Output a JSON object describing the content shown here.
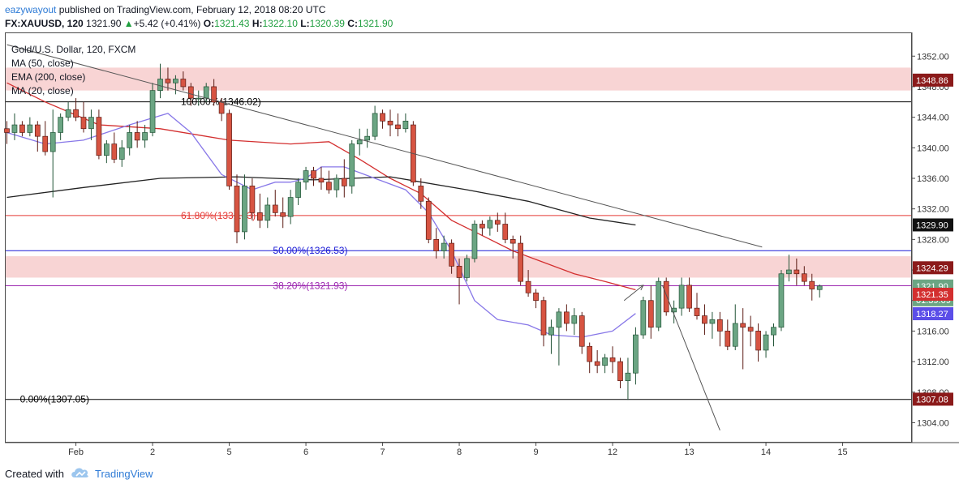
{
  "header": {
    "author": "eazywayout",
    "published_text": "published on TradingView.com, February 12, 2018 08:20 UTC",
    "symbol_interval": "FX:XAUUSD, 120",
    "last_price": "1321.90",
    "change_text": "+5.42 (+0.41%)",
    "open_label": "O:",
    "open_value": "1321.43",
    "high_label": "H:",
    "high_value": "1322.10",
    "low_label": "L:",
    "low_value": "1320.39",
    "close_label": "C:",
    "close_value": "1321.90"
  },
  "legend": {
    "title": "Gold/U.S. Dollar, 120, FXCM",
    "ma50": "MA (50, close)",
    "ema200": "EMA (200, close)",
    "ma20": "MA (20, close)"
  },
  "footer": {
    "created_with": "Created with",
    "brand": "TradingView"
  },
  "colors": {
    "up": "#6ba583",
    "down": "#d75442",
    "ma50": "#d32f2f",
    "ema200": "#222222",
    "ma20": "#8878e8",
    "fib_top": "#000000",
    "fib_618": "#e53935",
    "fib_50": "#1a1ad6",
    "fib_382": "#9c27b0",
    "zone": "#f5c6c6"
  },
  "chart_data": {
    "type": "candlestick",
    "y_axis": {
      "min": 1301.5,
      "max": 1355,
      "ticks": [
        1304,
        1308,
        1312,
        1316,
        1320,
        1324,
        1328,
        1332,
        1336,
        1340,
        1344,
        1348,
        1352
      ]
    },
    "x_axis": {
      "ticks": [
        {
          "label": "Feb",
          "pos": 9
        },
        {
          "label": "2",
          "pos": 19
        },
        {
          "label": "5",
          "pos": 29
        },
        {
          "label": "6",
          "pos": 39
        },
        {
          "label": "7",
          "pos": 49
        },
        {
          "label": "8",
          "pos": 59
        },
        {
          "label": "9",
          "pos": 69
        },
        {
          "label": "12",
          "pos": 79
        },
        {
          "label": "13",
          "pos": 89
        },
        {
          "label": "14",
          "pos": 99
        },
        {
          "label": "15",
          "pos": 109
        }
      ]
    },
    "price_labels": [
      {
        "value": 1348.86,
        "text": "1348.86",
        "bg": "#8b1a1a"
      },
      {
        "value": 1329.9,
        "text": "1329.90",
        "bg": "#111111"
      },
      {
        "value": 1324.29,
        "text": "1324.29",
        "bg": "#8b1a1a"
      },
      {
        "value": 1321.9,
        "text": "1321.90",
        "bg": "#6ba583"
      },
      {
        "value": 1321.9,
        "text": "01:39:09",
        "bg": "#6ba583",
        "offset": 17
      },
      {
        "value": 1321.35,
        "text": "1321.35",
        "bg": "#d32f2f",
        "offset": 5
      },
      {
        "value": 1318.27,
        "text": "1318.27",
        "bg": "#5b4ee8"
      },
      {
        "value": 1307.08,
        "text": "1307.08",
        "bg": "#8b1a1a"
      }
    ],
    "fib_levels": [
      {
        "ratio": "100.00%",
        "value": 1346.02,
        "text": "100.00%(1346.02)",
        "color": "#000000",
        "start": 21
      },
      {
        "ratio": "61.80%",
        "value": 1331.13,
        "text": "61.80%(1331.13)",
        "color": "#e53935",
        "start": 21
      },
      {
        "ratio": "50.00%",
        "value": 1326.53,
        "text": "50.00%(1326.53)",
        "color": "#1a1ad6",
        "start": 33
      },
      {
        "ratio": "38.20%",
        "value": 1321.93,
        "text": "38.20%(1321.93)",
        "color": "#9c27b0",
        "start": 33
      },
      {
        "ratio": "0.00%",
        "value": 1307.05,
        "text": "0.00%(1307.05)",
        "color": "#000000",
        "start": 0
      }
    ],
    "zones": [
      {
        "from": 1347.5,
        "to": 1350.5
      },
      {
        "from": 1323.0,
        "to": 1325.8
      }
    ],
    "trendline": {
      "x1": 0,
      "y1": 1353.5,
      "x2": 98.5,
      "y2": 1327.0
    },
    "projection": [
      {
        "x": 80.5,
        "y": 1320.0
      },
      {
        "x": 83.0,
        "y": 1322.0
      }
    ],
    "projection_down": [
      {
        "x": 85.5,
        "y": 1322.0
      },
      {
        "x": 93.0,
        "y": 1303.0
      }
    ],
    "candles": [
      [
        1342.5,
        1343.5,
        1340.5,
        1342.0
      ],
      [
        1342.0,
        1344.5,
        1341.0,
        1343.0
      ],
      [
        1343.0,
        1343.5,
        1341.5,
        1342.0
      ],
      [
        1342.0,
        1344.0,
        1341.5,
        1343.0
      ],
      [
        1343.0,
        1343.5,
        1339.5,
        1341.5
      ],
      [
        1341.5,
        1343.5,
        1339.0,
        1339.5
      ],
      [
        1339.5,
        1345.0,
        1333.5,
        1342.0
      ],
      [
        1342.0,
        1344.5,
        1341.0,
        1344.0
      ],
      [
        1344.0,
        1346.0,
        1343.5,
        1345.0
      ],
      [
        1345.0,
        1346.5,
        1343.5,
        1344.0
      ],
      [
        1344.0,
        1346.0,
        1342.0,
        1342.5
      ],
      [
        1342.5,
        1345.0,
        1341.0,
        1344.0
      ],
      [
        1344.0,
        1345.0,
        1338.5,
        1339.0
      ],
      [
        1339.0,
        1341.0,
        1338.0,
        1340.5
      ],
      [
        1340.5,
        1342.0,
        1338.0,
        1338.5
      ],
      [
        1338.5,
        1341.0,
        1337.5,
        1340.0
      ],
      [
        1340.0,
        1343.0,
        1339.0,
        1342.0
      ],
      [
        1342.0,
        1343.5,
        1340.0,
        1341.0
      ],
      [
        1341.0,
        1343.0,
        1340.0,
        1342.0
      ],
      [
        1342.0,
        1348.5,
        1341.5,
        1347.5
      ],
      [
        1347.5,
        1351.0,
        1346.5,
        1349.0
      ],
      [
        1349.0,
        1350.5,
        1347.5,
        1348.5
      ],
      [
        1348.5,
        1349.5,
        1347.0,
        1349.0
      ],
      [
        1349.0,
        1350.0,
        1347.5,
        1348.0
      ],
      [
        1348.0,
        1348.5,
        1345.5,
        1346.5
      ],
      [
        1346.5,
        1347.5,
        1345.5,
        1346.5
      ],
      [
        1346.5,
        1348.5,
        1346.0,
        1348.0
      ],
      [
        1348.0,
        1349.0,
        1345.5,
        1346.0
      ],
      [
        1346.0,
        1346.5,
        1343.5,
        1344.5
      ],
      [
        1344.5,
        1345.0,
        1334.5,
        1335.0
      ],
      [
        1335.0,
        1336.5,
        1327.5,
        1329.0
      ],
      [
        1329.0,
        1336.5,
        1328.0,
        1335.0
      ],
      [
        1335.0,
        1336.0,
        1330.5,
        1331.5
      ],
      [
        1331.5,
        1334.0,
        1329.5,
        1330.5
      ],
      [
        1330.5,
        1333.5,
        1329.5,
        1332.5
      ],
      [
        1332.5,
        1334.5,
        1331.0,
        1331.5
      ],
      [
        1331.5,
        1333.5,
        1329.5,
        1331.0
      ],
      [
        1331.0,
        1334.5,
        1330.0,
        1333.5
      ],
      [
        1333.5,
        1336.0,
        1332.5,
        1335.5
      ],
      [
        1335.5,
        1337.5,
        1334.5,
        1337.0
      ],
      [
        1337.0,
        1337.5,
        1335.0,
        1336.0
      ],
      [
        1336.0,
        1337.5,
        1334.5,
        1335.5
      ],
      [
        1335.5,
        1337.0,
        1334.0,
        1334.5
      ],
      [
        1334.5,
        1336.5,
        1333.5,
        1336.0
      ],
      [
        1336.0,
        1338.5,
        1333.5,
        1335.0
      ],
      [
        1335.0,
        1341.0,
        1334.0,
        1340.5
      ],
      [
        1340.5,
        1342.5,
        1339.0,
        1341.0
      ],
      [
        1341.0,
        1342.5,
        1340.0,
        1341.5
      ],
      [
        1341.5,
        1345.5,
        1341.0,
        1344.5
      ],
      [
        1344.5,
        1345.0,
        1342.5,
        1343.5
      ],
      [
        1343.5,
        1345.0,
        1341.5,
        1343.0
      ],
      [
        1343.0,
        1344.5,
        1341.5,
        1342.5
      ],
      [
        1342.5,
        1344.5,
        1342.0,
        1343.5
      ],
      [
        1343.0,
        1343.5,
        1335.0,
        1335.5
      ],
      [
        1335.0,
        1336.0,
        1332.0,
        1333.0
      ],
      [
        1333.0,
        1333.5,
        1327.5,
        1328.0
      ],
      [
        1328.0,
        1329.5,
        1325.5,
        1326.5
      ],
      [
        1326.5,
        1328.5,
        1325.5,
        1327.5
      ],
      [
        1327.5,
        1328.0,
        1323.5,
        1324.5
      ],
      [
        1324.5,
        1325.5,
        1319.5,
        1323.0
      ],
      [
        1323.0,
        1326.0,
        1322.5,
        1325.5
      ],
      [
        1325.5,
        1330.5,
        1325.0,
        1330.0
      ],
      [
        1330.0,
        1330.5,
        1328.5,
        1329.5
      ],
      [
        1329.5,
        1331.0,
        1328.5,
        1330.5
      ],
      [
        1330.5,
        1331.5,
        1329.0,
        1330.0
      ],
      [
        1330.0,
        1331.5,
        1327.5,
        1328.0
      ],
      [
        1328.0,
        1328.5,
        1325.5,
        1327.5
      ],
      [
        1327.5,
        1328.5,
        1322.0,
        1322.5
      ],
      [
        1322.5,
        1324.0,
        1320.5,
        1321.0
      ],
      [
        1321.0,
        1321.5,
        1319.0,
        1320.0
      ],
      [
        1320.0,
        1320.5,
        1314.0,
        1315.5
      ],
      [
        1315.5,
        1317.5,
        1313.0,
        1316.5
      ],
      [
        1316.5,
        1319.0,
        1311.5,
        1318.5
      ],
      [
        1318.5,
        1319.5,
        1316.0,
        1317.0
      ],
      [
        1317.0,
        1319.0,
        1315.5,
        1318.0
      ],
      [
        1318.0,
        1318.5,
        1313.0,
        1314.0
      ],
      [
        1314.0,
        1314.5,
        1310.5,
        1312.0
      ],
      [
        1312.0,
        1313.5,
        1310.5,
        1311.5
      ],
      [
        1311.5,
        1313.0,
        1310.5,
        1312.5
      ],
      [
        1312.5,
        1314.0,
        1310.5,
        1312.0
      ],
      [
        1312.0,
        1312.5,
        1308.5,
        1309.5
      ],
      [
        1309.5,
        1312.5,
        1307.0,
        1310.5
      ],
      [
        1310.5,
        1316.5,
        1309.0,
        1315.5
      ],
      [
        1315.5,
        1320.5,
        1315.0,
        1320.0
      ],
      [
        1320.0,
        1322.0,
        1315.0,
        1316.5
      ],
      [
        1316.5,
        1323.0,
        1316.0,
        1322.5
      ],
      [
        1322.5,
        1323.0,
        1318.0,
        1318.5
      ],
      [
        1318.5,
        1320.0,
        1317.0,
        1319.0
      ],
      [
        1319.0,
        1323.0,
        1318.0,
        1322.0
      ],
      [
        1322.0,
        1323.0,
        1318.5,
        1319.0
      ],
      [
        1319.0,
        1321.0,
        1317.5,
        1318.0
      ],
      [
        1318.0,
        1319.5,
        1315.5,
        1317.0
      ],
      [
        1317.0,
        1318.5,
        1315.0,
        1317.5
      ],
      [
        1317.5,
        1318.5,
        1314.0,
        1316.0
      ],
      [
        1316.0,
        1317.5,
        1313.5,
        1314.0
      ],
      [
        1314.0,
        1319.5,
        1313.5,
        1317.0
      ],
      [
        1317.0,
        1319.0,
        1311.0,
        1316.5
      ],
      [
        1316.5,
        1318.0,
        1314.0,
        1316.0
      ],
      [
        1316.0,
        1317.0,
        1312.0,
        1313.5
      ],
      [
        1313.5,
        1316.0,
        1312.5,
        1315.5
      ],
      [
        1315.5,
        1317.0,
        1314.0,
        1316.5
      ],
      [
        1316.5,
        1324.0,
        1316.0,
        1323.5
      ],
      [
        1323.5,
        1326.0,
        1322.5,
        1324.0
      ],
      [
        1324.0,
        1325.5,
        1322.0,
        1323.5
      ],
      [
        1323.5,
        1324.5,
        1322.0,
        1322.5
      ],
      [
        1322.5,
        1323.5,
        1320.0,
        1321.5
      ],
      [
        1321.43,
        1322.1,
        1320.39,
        1321.9
      ]
    ],
    "series": [
      {
        "name": "MA (50, close)",
        "color": "#d32f2f",
        "points": [
          [
            0,
            1348.5
          ],
          [
            5,
            1346
          ],
          [
            12,
            1343
          ],
          [
            20,
            1342.5
          ],
          [
            29,
            1341
          ],
          [
            37,
            1340.5
          ],
          [
            42,
            1340.8
          ],
          [
            46,
            1338.5
          ],
          [
            50,
            1336
          ],
          [
            54,
            1334
          ],
          [
            58,
            1330.5
          ],
          [
            62,
            1328.5
          ],
          [
            66,
            1326.5
          ],
          [
            70,
            1325
          ],
          [
            74,
            1323.5
          ],
          [
            78,
            1322.5
          ],
          [
            82,
            1321.4
          ]
        ]
      },
      {
        "name": "EMA (200, close)",
        "color": "#222222",
        "points": [
          [
            0,
            1333.5
          ],
          [
            10,
            1334.8
          ],
          [
            20,
            1336
          ],
          [
            30,
            1336.2
          ],
          [
            40,
            1335.8
          ],
          [
            50,
            1336.2
          ],
          [
            60,
            1334.5
          ],
          [
            68,
            1333
          ],
          [
            76,
            1330.8
          ],
          [
            82,
            1329.9
          ]
        ]
      },
      {
        "name": "MA (20, close)",
        "color": "#8878e8",
        "points": [
          [
            0,
            1342
          ],
          [
            5,
            1340.5
          ],
          [
            10,
            1341
          ],
          [
            16,
            1343
          ],
          [
            21,
            1344.5
          ],
          [
            24,
            1342
          ],
          [
            28,
            1336.5
          ],
          [
            32,
            1334.5
          ],
          [
            35,
            1335.5
          ],
          [
            37,
            1335.5
          ],
          [
            39,
            1336
          ],
          [
            41,
            1337.5
          ],
          [
            44,
            1337.5
          ],
          [
            48,
            1336
          ],
          [
            52,
            1334.5
          ],
          [
            55,
            1331.5
          ],
          [
            58,
            1326.5
          ],
          [
            61,
            1320
          ],
          [
            64,
            1317.5
          ],
          [
            68,
            1316.8
          ],
          [
            71,
            1315.5
          ],
          [
            75,
            1315.2
          ],
          [
            79,
            1316
          ],
          [
            82,
            1318.3
          ]
        ]
      }
    ]
  }
}
